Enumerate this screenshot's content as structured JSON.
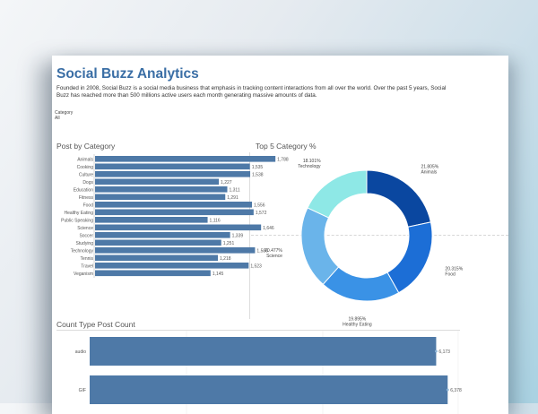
{
  "header": {
    "title": "Social Buzz Analytics",
    "description": "Founded in 2008, Social Buzz is a social media business that emphasis in tracking content interactions from all over the world. Over the past 5 years, Social Buzz has reached more than 500 millions active users each month generating massive amounts of data."
  },
  "filter": {
    "label": "Category",
    "value": "All"
  },
  "panels": {
    "post_by_category": "Post by Category",
    "top5": "Top 5 Category %",
    "count_type": "Count Type Post Count"
  },
  "colors": {
    "bar": "#4e79a7",
    "title": "#3a6ea5"
  },
  "chart_data": [
    {
      "type": "bar",
      "orientation": "horizontal",
      "title": "Post by Category",
      "categories": [
        "Animals",
        "Cooking",
        "Culture",
        "Dogs",
        "Education",
        "Fitness",
        "Food",
        "Healthy Eating",
        "Public Speaking",
        "Science",
        "Soccer",
        "Studying",
        "Technology",
        "Tennis",
        "Travel",
        "Veganism"
      ],
      "values": [
        1788,
        1535,
        1538,
        1227,
        1311,
        1291,
        1556,
        1572,
        1116,
        1646,
        1339,
        1251,
        1586,
        1218,
        1523,
        1145
      ],
      "value_labels": [
        "1,788",
        "1,535",
        "1,538",
        "1,227",
        "1,311",
        "1,291",
        "1,556",
        "1,572",
        "1,116",
        "1,646",
        "1,339",
        "1,251",
        "1,586",
        "1,218",
        "1,523",
        "1,145"
      ]
    },
    {
      "type": "pie",
      "title": "Top 5 Category %",
      "slices": [
        {
          "name": "Animals",
          "value": 21.805,
          "label": "21.805%",
          "color": "#0a47a0"
        },
        {
          "name": "Food",
          "value": 20.315,
          "label": "20.315%",
          "color": "#1c6ed6"
        },
        {
          "name": "Healthy Eating",
          "value": 19.895,
          "label": "19.895%",
          "color": "#3a92e6"
        },
        {
          "name": "Science",
          "value": 20.477,
          "label": "20.477%",
          "color": "#6ab4ea"
        },
        {
          "name": "Technology",
          "value": 18.101,
          "label": "18.101%",
          "color": "#8ee8e6"
        }
      ]
    },
    {
      "type": "bar",
      "orientation": "horizontal",
      "title": "Count Type Post Count",
      "categories": [
        "audio",
        "GIF"
      ],
      "values": [
        6173,
        6378
      ],
      "value_labels": [
        "6,173",
        "6,378"
      ]
    }
  ]
}
